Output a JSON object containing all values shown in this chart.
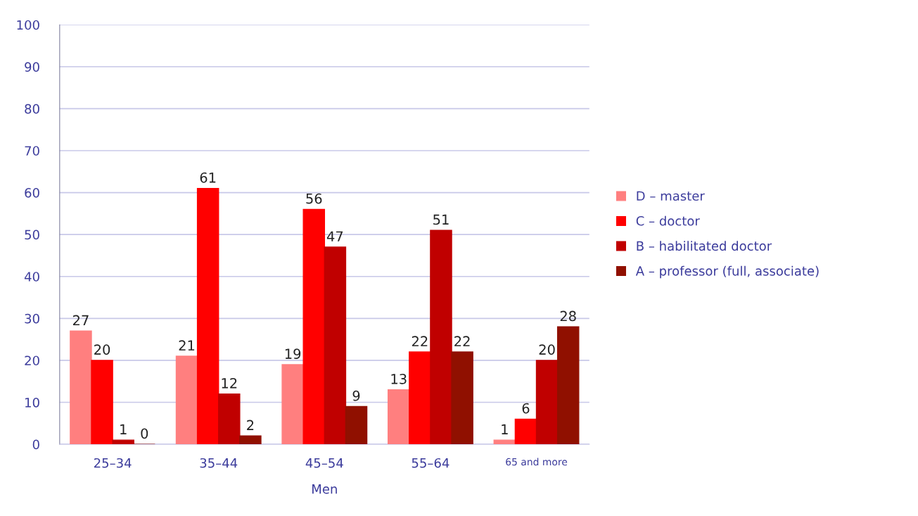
{
  "chart_data": {
    "type": "bar",
    "xlabel": "Men",
    "categories": [
      "25–34",
      "35–44",
      "45–54",
      "55–64",
      "65 and more"
    ],
    "series": [
      {
        "name": "D – master",
        "color": "#ff7f7f",
        "values": [
          27,
          21,
          19,
          13,
          1
        ]
      },
      {
        "name": "C – doctor",
        "color": "#ff0000",
        "values": [
          20,
          61,
          56,
          22,
          6
        ]
      },
      {
        "name": "B – habilitated doctor",
        "color": "#c00000",
        "values": [
          1,
          12,
          47,
          51,
          20
        ]
      },
      {
        "name": "A – professor (full, associate)",
        "color": "#901000",
        "values": [
          0,
          2,
          9,
          22,
          28
        ]
      }
    ],
    "ylim": [
      0,
      100
    ],
    "yticks": [
      0,
      10,
      20,
      30,
      40,
      50,
      60,
      70,
      80,
      90,
      100
    ],
    "grid": "y",
    "legend": "right",
    "data_labels": true
  }
}
